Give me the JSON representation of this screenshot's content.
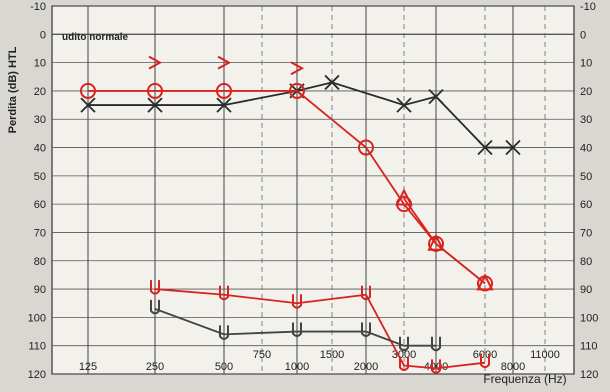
{
  "chart_data": {
    "type": "line",
    "ylabel": "Perdita (dB) HTL",
    "xlabel": "Frequenza (Hz)",
    "annotation": "udito normale",
    "y_ticks": [
      -10,
      0,
      10,
      20,
      30,
      40,
      50,
      60,
      70,
      80,
      90,
      100,
      110,
      120
    ],
    "ylim": [
      -10,
      120
    ],
    "y_inverted": true,
    "x_major_labels": [
      "125",
      "250",
      "500",
      "1000",
      "2000",
      "4000",
      "8000"
    ],
    "x_minor_labels": [
      "750",
      "1500",
      "3000",
      "6000",
      "11000"
    ],
    "grid": true,
    "series": [
      {
        "marker": "x",
        "color": "#2b2b2b",
        "x": [
          125,
          250,
          500,
          1000,
          1500,
          3000,
          4000,
          6000,
          8000
        ],
        "values": [
          25,
          25,
          25,
          20,
          17,
          25,
          22,
          40,
          40
        ]
      },
      {
        "marker": "o",
        "color": "#d8231f",
        "x": [
          125,
          250,
          500,
          1000,
          2000,
          3000,
          4000,
          6000
        ],
        "values": [
          20,
          20,
          20,
          20,
          40,
          60,
          74,
          88
        ]
      },
      {
        "marker": ">",
        "color": "#d8231f",
        "x": [
          250,
          500,
          1000
        ],
        "values": [
          10,
          10,
          12
        ]
      },
      {
        "marker": "triangle",
        "color": "#d8231f",
        "x": [
          3000,
          4000,
          6000
        ],
        "values": [
          58,
          74,
          88
        ]
      },
      {
        "marker": "u",
        "color": "#d8231f",
        "x": [
          250,
          500,
          1000,
          2000,
          3000,
          4000,
          6000
        ],
        "values": [
          90,
          92,
          95,
          92,
          117,
          118,
          116
        ]
      },
      {
        "marker": "u",
        "color": "#444444",
        "x": [
          250,
          500,
          1000,
          2000,
          3000,
          4000
        ],
        "values": [
          97,
          106,
          105,
          105,
          110,
          110
        ]
      }
    ]
  }
}
